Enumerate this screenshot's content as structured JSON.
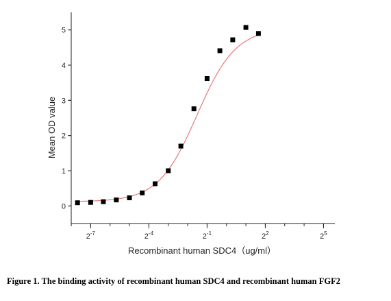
{
  "chart_data": {
    "type": "scatter",
    "xlabel": "Recombinant human  SDC4（ug/ml）",
    "ylabel": "Mean OD value",
    "x_scale": "log2",
    "xlim": [
      0.0039,
      48
    ],
    "ylim": [
      -0.5,
      5.5
    ],
    "x_ticks": [
      {
        "value": 0.0078125,
        "base": "2",
        "exp": "-7"
      },
      {
        "value": 0.0625,
        "base": "2",
        "exp": "-4"
      },
      {
        "value": 0.5,
        "base": "2",
        "exp": "-1"
      },
      {
        "value": 4,
        "base": "2",
        "exp": "2"
      },
      {
        "value": 32,
        "base": "2",
        "exp": "5"
      }
    ],
    "y_ticks": [
      0,
      1,
      2,
      3,
      4,
      5
    ],
    "y_tick_labels": [
      "0",
      "1",
      "2",
      "3",
      "4",
      "5"
    ],
    "series": [
      {
        "marker": "square",
        "color": "#000000",
        "points": [
          {
            "x": 0.0048828,
            "y": 0.09
          },
          {
            "x": 0.0078125,
            "y": 0.1
          },
          {
            "x": 0.0123,
            "y": 0.12
          },
          {
            "x": 0.0195313,
            "y": 0.17
          },
          {
            "x": 0.03125,
            "y": 0.23
          },
          {
            "x": 0.0493,
            "y": 0.37
          },
          {
            "x": 0.078125,
            "y": 0.63
          },
          {
            "x": 0.125,
            "y": 1.0
          },
          {
            "x": 0.196,
            "y": 1.7
          },
          {
            "x": 0.3125,
            "y": 2.76
          },
          {
            "x": 0.5,
            "y": 3.62
          },
          {
            "x": 0.79,
            "y": 4.41
          },
          {
            "x": 1.25,
            "y": 4.72
          },
          {
            "x": 2.0,
            "y": 5.07
          },
          {
            "x": 3.13,
            "y": 4.9
          }
        ]
      }
    ],
    "fit_curve": {
      "color": "#e37b7b",
      "bottom": 0.12,
      "top": 5.05,
      "ec50": 0.35,
      "hill": 1.45
    }
  },
  "caption": "Figure 1. The binding activity of recombinant human SDC4 and recombinant human FGF2"
}
